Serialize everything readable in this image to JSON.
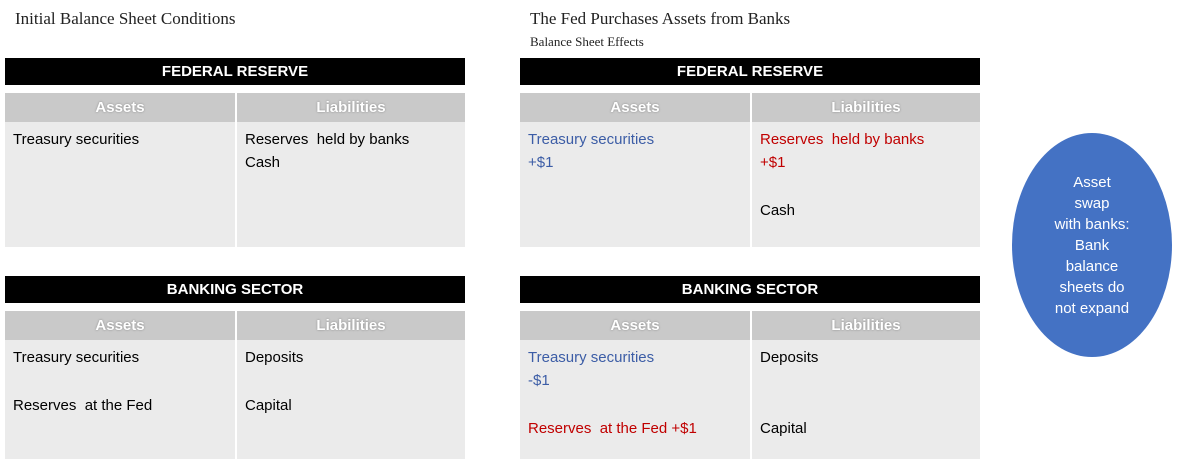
{
  "left": {
    "title": "Initial Balance Sheet Conditions",
    "tables": [
      {
        "title": "FEDERAL RESERVE",
        "headers": [
          "Assets",
          "Liabilities"
        ],
        "rows": [
          [
            {
              "lines": [
                "Treasury securities"
              ],
              "color": "#000000"
            },
            {
              "lines": [
                "Reserves  held by banks",
                "Cash"
              ],
              "color": "#000000"
            }
          ]
        ]
      },
      {
        "title": "BANKING SECTOR",
        "headers": [
          "Assets",
          "Liabilities"
        ],
        "rows": [
          [
            {
              "lines": [
                "Treasury securities"
              ],
              "color": "#000000"
            },
            {
              "lines": [
                "Deposits"
              ],
              "color": "#000000"
            }
          ],
          [
            {
              "lines": [
                "Reserves  at the Fed"
              ],
              "color": "#000000"
            },
            {
              "lines": [
                "Capital"
              ],
              "color": "#000000"
            }
          ]
        ]
      }
    ]
  },
  "right": {
    "title": "The Fed Purchases Assets from Banks",
    "subtitle": "Balance Sheet Effects",
    "tables": [
      {
        "title": "FEDERAL RESERVE",
        "headers": [
          "Assets",
          "Liabilities"
        ],
        "rows": [
          [
            {
              "lines": [
                "Treasury securities",
                "+$1"
              ],
              "color": "#3c5da6"
            },
            {
              "lines": [
                "Reserves  held by banks",
                "+$1"
              ],
              "color": "#c00000"
            }
          ],
          [
            {
              "lines": [],
              "color": "#000000"
            },
            {
              "lines": [
                "Cash"
              ],
              "color": "#000000"
            }
          ]
        ]
      },
      {
        "title": "BANKING SECTOR",
        "headers": [
          "Assets",
          "Liabilities"
        ],
        "rows": [
          [
            {
              "lines": [
                "Treasury securities",
                "-$1"
              ],
              "color": "#3c5da6"
            },
            {
              "lines": [
                "Deposits"
              ],
              "color": "#000000"
            }
          ],
          [
            {
              "lines": [
                "Reserves  at the Fed +$1"
              ],
              "color": "#c00000"
            },
            {
              "lines": [
                "Capital"
              ],
              "color": "#000000"
            }
          ]
        ]
      }
    ]
  },
  "note": {
    "lines": [
      "Asset",
      "swap",
      "with banks:",
      "Bank",
      "balance",
      "sheets do",
      "not expand"
    ]
  }
}
